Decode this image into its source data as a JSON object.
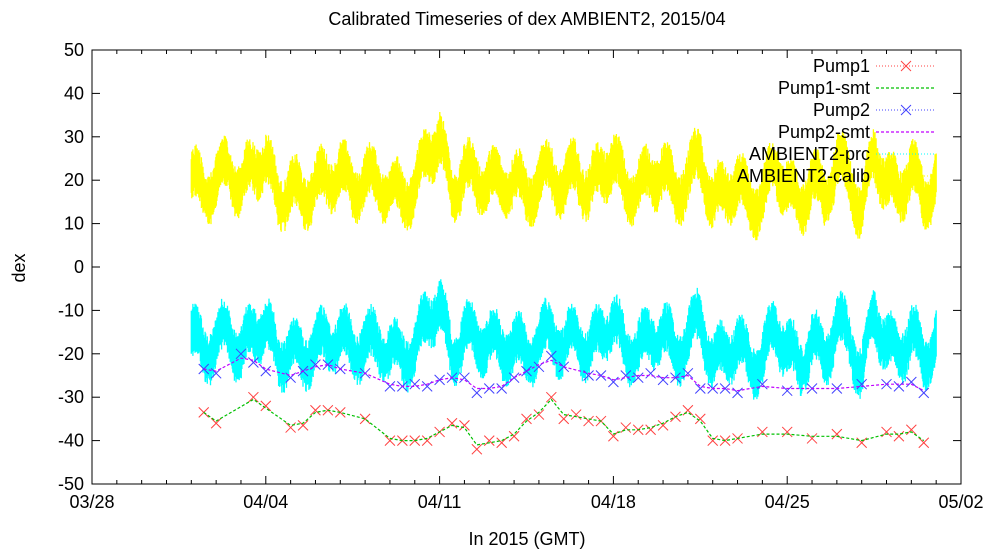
{
  "chart_data": {
    "type": "line",
    "title": "Calibrated Timeseries of dex AMBIENT2, 2015/04",
    "xlabel": "In 2015 (GMT)",
    "ylabel": "dex",
    "xlim": [
      "03/28",
      "05/02"
    ],
    "ylim": [
      -50,
      50
    ],
    "x_ticks": [
      "03/28",
      "04/04",
      "04/11",
      "04/18",
      "04/25",
      "05/02"
    ],
    "y_ticks": [
      50,
      40,
      30,
      20,
      10,
      0,
      -10,
      -20,
      -30,
      -40,
      -50
    ],
    "grid": false,
    "legend_position": "top-right",
    "x_unit": "days since 03/28",
    "series": [
      {
        "name": "Pump1",
        "color": "#ff4040",
        "marker": "x",
        "x": [
          4.5,
          5.0,
          6.5,
          7.0,
          8.0,
          8.5,
          9.0,
          9.5,
          10.0,
          11.0,
          12.0,
          12.5,
          13.0,
          13.5,
          14.0,
          14.5,
          15.0,
          15.5,
          16.0,
          16.5,
          17.0,
          17.5,
          18.0,
          18.5,
          19.0,
          19.5,
          20.0,
          20.5,
          21.0,
          21.5,
          22.0,
          22.5,
          23.0,
          23.5,
          24.0,
          24.5,
          25.0,
          25.5,
          26.0,
          27.0,
          28.0,
          29.0,
          30.0,
          31.0,
          32.0,
          32.5,
          33.0,
          33.5
        ],
        "y": [
          -33.5,
          -36,
          -30,
          -32,
          -37,
          -36.5,
          -33,
          -33,
          -33.5,
          -35,
          -40,
          -40,
          -40,
          -40,
          -38,
          -36,
          -36.5,
          -42,
          -40,
          -40.5,
          -39,
          -35,
          -34,
          -30,
          -35,
          -34,
          -35.5,
          -35.5,
          -39,
          -37,
          -37.5,
          -37.5,
          -36.5,
          -34.5,
          -33,
          -35,
          -40,
          -40,
          -39.5,
          -38,
          -38,
          -39.5,
          -38.5,
          -40.5,
          -38,
          -39,
          -37.5,
          -40.5
        ]
      },
      {
        "name": "Pump1-smt",
        "color": "#00c000",
        "marker": "none",
        "x": [
          4.5,
          5.0,
          6.5,
          7.0,
          8.0,
          8.5,
          9.0,
          9.5,
          10.0,
          11.0,
          12.0,
          12.5,
          13.0,
          13.5,
          14.0,
          14.5,
          15.0,
          15.5,
          16.0,
          16.5,
          17.0,
          17.5,
          18.0,
          18.5,
          19.0,
          19.5,
          20.0,
          20.5,
          21.0,
          21.5,
          22.0,
          22.5,
          23.0,
          23.5,
          24.0,
          24.5,
          25.0,
          25.5,
          26.0,
          27.0,
          28.0,
          29.0,
          30.0,
          31.0,
          32.0,
          32.5,
          33.0,
          33.5
        ],
        "y": [
          -33.5,
          -35.5,
          -30.5,
          -32.5,
          -36.5,
          -36,
          -33.5,
          -33,
          -33.5,
          -35,
          -39.5,
          -40,
          -40,
          -39.5,
          -38,
          -36.5,
          -37,
          -41,
          -40.5,
          -40,
          -38.5,
          -35.5,
          -33.5,
          -30.5,
          -34,
          -34.5,
          -35,
          -35.5,
          -38.5,
          -37.5,
          -37.5,
          -37,
          -36,
          -34.5,
          -33.5,
          -35.5,
          -39.5,
          -40,
          -39.5,
          -38.5,
          -38.5,
          -39,
          -39,
          -40,
          -38.5,
          -38.5,
          -38,
          -40
        ]
      },
      {
        "name": "Pump2",
        "color": "#4040ff",
        "marker": "x",
        "x": [
          4.5,
          5.0,
          6.0,
          6.5,
          7.0,
          8.0,
          8.5,
          9.0,
          9.5,
          10.0,
          11.0,
          12.0,
          12.5,
          13.0,
          13.5,
          14.0,
          14.5,
          15.0,
          15.5,
          16.0,
          16.5,
          17.0,
          17.5,
          18.0,
          18.5,
          19.0,
          20.0,
          20.5,
          21.0,
          21.5,
          22.0,
          22.5,
          23.0,
          23.5,
          24.0,
          24.5,
          25.0,
          25.5,
          26.0,
          27.0,
          28.0,
          29.0,
          30.0,
          31.0,
          32.0,
          32.5,
          33.0,
          33.5
        ],
        "y": [
          -23.5,
          -24.5,
          -20,
          -22,
          -24,
          -25.5,
          -24,
          -22.5,
          -22.5,
          -23.5,
          -24.5,
          -27.5,
          -27.5,
          -27,
          -27.5,
          -26,
          -25.5,
          -25.5,
          -29,
          -28,
          -28,
          -25.5,
          -24,
          -23,
          -20.5,
          -23,
          -25,
          -25,
          -26.5,
          -25,
          -25.5,
          -24.5,
          -26,
          -25.5,
          -24.5,
          -28,
          -28,
          -28,
          -29,
          -27,
          -28.5,
          -28,
          -28,
          -27,
          -27,
          -27.5,
          -26.5,
          -29
        ]
      },
      {
        "name": "Pump2-smt",
        "color": "#c000ff",
        "marker": "none",
        "x": [
          4.5,
          5.0,
          6.0,
          6.5,
          7.0,
          8.0,
          8.5,
          9.0,
          9.5,
          10.0,
          11.0,
          12.0,
          12.5,
          13.0,
          13.5,
          14.0,
          14.5,
          15.0,
          15.5,
          16.0,
          16.5,
          17.0,
          17.5,
          18.0,
          18.5,
          19.0,
          20.0,
          20.5,
          21.0,
          21.5,
          22.0,
          22.5,
          23.0,
          23.5,
          24.0,
          24.5,
          25.0,
          25.5,
          26.0,
          27.0,
          28.0,
          29.0,
          30.0,
          31.0,
          32.0,
          32.5,
          33.0,
          33.5
        ],
        "y": [
          -23.5,
          -24,
          -21,
          -21.5,
          -23.5,
          -25,
          -24,
          -23,
          -22.5,
          -23.5,
          -24.5,
          -27,
          -27.5,
          -27.5,
          -27,
          -26,
          -25.5,
          -26,
          -28,
          -28,
          -27.5,
          -25.5,
          -24,
          -22.5,
          -21.5,
          -23,
          -24.5,
          -25,
          -26,
          -25.5,
          -25,
          -25,
          -25.5,
          -25.5,
          -25,
          -27.5,
          -28,
          -28,
          -28.5,
          -27.5,
          -28,
          -28,
          -28,
          -27.5,
          -27,
          -27,
          -27,
          -28.5
        ]
      },
      {
        "name": "AMBIENT2-prc",
        "color": "#00ffff",
        "marker": "noise-band",
        "x": [
          4.0,
          4.5,
          5.0,
          5.5,
          6.0,
          6.5,
          7.0,
          7.5,
          8.0,
          8.5,
          9.0,
          9.5,
          10.0,
          10.5,
          11.0,
          11.5,
          12.0,
          12.5,
          13.0,
          13.5,
          14.0,
          14.5,
          15.0,
          15.5,
          16.0,
          16.5,
          17.0,
          17.5,
          18.0,
          18.5,
          19.0,
          19.5,
          20.0,
          20.5,
          21.0,
          21.5,
          22.0,
          22.5,
          23.0,
          23.5,
          24.0,
          24.5,
          25.0,
          25.5,
          26.0,
          26.5,
          27.0,
          27.5,
          28.0,
          28.5,
          29.0,
          29.5,
          30.0,
          30.5,
          31.0,
          31.5,
          32.0,
          32.5,
          33.0,
          33.5,
          34.0
        ],
        "y": [
          -15,
          -20,
          -17,
          -15,
          -20,
          -15,
          -13,
          -22,
          -18,
          -22,
          -17,
          -18,
          -15,
          -20,
          -17,
          -18,
          -19,
          -21,
          -19,
          -12,
          -8,
          -22,
          -14,
          -18,
          -16,
          -20,
          -17,
          -21,
          -17,
          -15,
          -19,
          -15,
          -20,
          -15,
          -12,
          -20,
          -18,
          -17,
          -14,
          -21,
          -16,
          -12,
          -22,
          -20,
          -17,
          -23,
          -21,
          -14,
          -18,
          -24,
          -16,
          -22,
          -12,
          -17,
          -24,
          -11,
          -17,
          -21,
          -14,
          -23,
          -15
        ]
      },
      {
        "name": "AMBIENT2-calib",
        "color": "#ffff00",
        "marker": "noise-band",
        "x": [
          4.0,
          4.5,
          5.0,
          5.5,
          6.0,
          6.5,
          7.0,
          7.5,
          8.0,
          8.5,
          9.0,
          9.5,
          10.0,
          10.5,
          11.0,
          11.5,
          12.0,
          12.5,
          13.0,
          13.5,
          14.0,
          14.5,
          15.0,
          15.5,
          16.0,
          16.5,
          17.0,
          17.5,
          18.0,
          18.5,
          19.0,
          19.5,
          20.0,
          20.5,
          21.0,
          21.5,
          22.0,
          22.5,
          23.0,
          23.5,
          24.0,
          24.5,
          25.0,
          25.5,
          26.0,
          26.5,
          27.0,
          27.5,
          28.0,
          28.5,
          29.0,
          29.5,
          30.0,
          30.5,
          31.0,
          31.5,
          32.0,
          32.5,
          33.0,
          33.5,
          34.0
        ],
        "y": [
          21,
          17,
          20,
          23,
          18,
          23,
          25,
          15,
          19,
          15,
          20,
          19,
          23,
          17,
          21,
          19,
          18,
          16,
          18,
          26,
          30,
          16,
          23,
          19,
          21,
          18,
          21,
          16,
          20,
          22,
          18,
          23,
          17,
          22,
          25,
          17,
          19,
          20,
          23,
          16,
          21,
          25,
          15,
          17,
          20,
          14,
          16,
          23,
          19,
          13,
          21,
          15,
          25,
          20,
          13,
          26,
          20,
          16,
          24,
          14,
          22
        ]
      }
    ]
  }
}
